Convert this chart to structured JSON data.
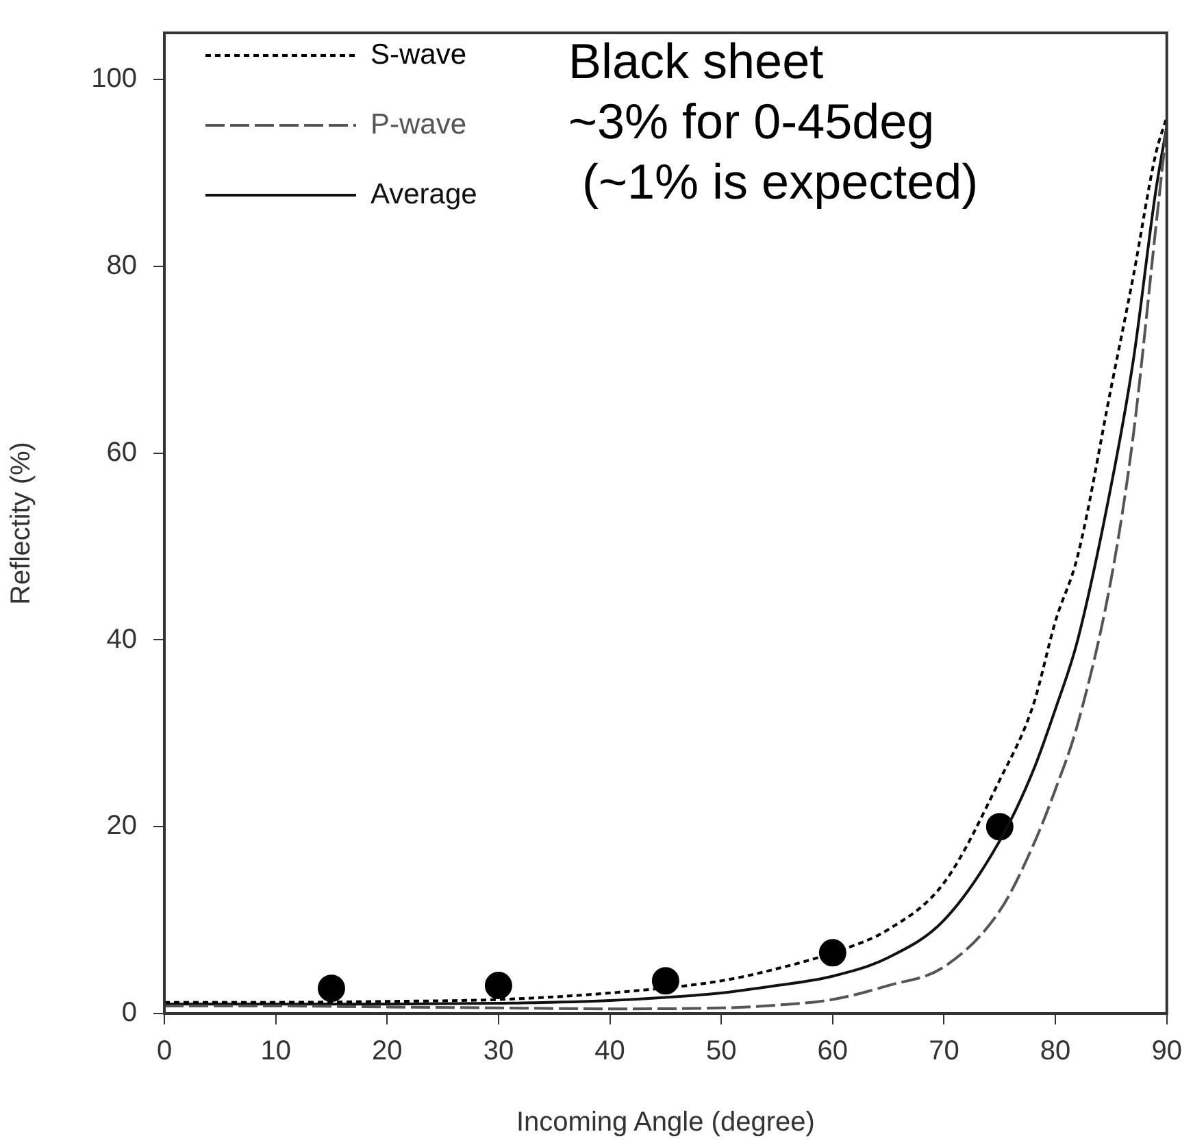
{
  "chart_data": {
    "type": "line",
    "xlabel": "Incoming Angle (degree)",
    "ylabel": "Reflectity (%)",
    "xlim": [
      0,
      90
    ],
    "xticks": [
      0,
      10,
      20,
      30,
      40,
      50,
      60,
      70,
      80,
      90
    ],
    "ylim": [
      0,
      105
    ],
    "yticks": [
      0,
      20,
      40,
      60,
      80,
      100
    ],
    "grid": false,
    "legend": "top left",
    "annotations": [
      "Black sheet\n~3% for 0-45deg\n (~1% is expected)"
    ],
    "series": [
      {
        "name": "S-wave",
        "color": "#000000",
        "line_style": "dotted",
        "marker": "none",
        "x": [
          0,
          10,
          20,
          30,
          40,
          50,
          55,
          60,
          65,
          70,
          75,
          78,
          80,
          82,
          85,
          87,
          89,
          90
        ],
        "values": [
          1.2,
          1.2,
          1.3,
          1.5,
          2.2,
          3.5,
          4.8,
          6.5,
          9,
          14,
          25,
          33,
          42,
          49,
          67,
          79,
          92,
          96
        ]
      },
      {
        "name": "P-wave",
        "color": "#555555",
        "line_style": "dashed",
        "marker": "none",
        "x": [
          0,
          10,
          20,
          30,
          40,
          50,
          55,
          60,
          65,
          70,
          75,
          78,
          80,
          82,
          85,
          87,
          89,
          90
        ],
        "values": [
          0.8,
          0.8,
          0.7,
          0.6,
          0.5,
          0.6,
          0.9,
          1.5,
          3,
          5,
          11,
          18,
          24,
          31,
          46.5,
          62,
          84,
          95
        ]
      },
      {
        "name": "Average",
        "color": "#111111",
        "line_style": "solid",
        "marker": "none",
        "x": [
          0,
          10,
          20,
          30,
          40,
          50,
          55,
          60,
          65,
          70,
          75,
          78,
          80,
          82,
          85,
          87,
          89,
          90
        ],
        "values": [
          1,
          1,
          1,
          1.1,
          1.4,
          2.2,
          3,
          4,
          6,
          10,
          18.5,
          26,
          32.6,
          40,
          56.5,
          70,
          88,
          95
        ]
      },
      {
        "type": "scatter",
        "color": "#000000",
        "marker": "circle",
        "x": [
          15,
          30,
          45,
          60,
          75
        ],
        "values": [
          2.7,
          3,
          3.5,
          6.5,
          20
        ]
      }
    ]
  }
}
